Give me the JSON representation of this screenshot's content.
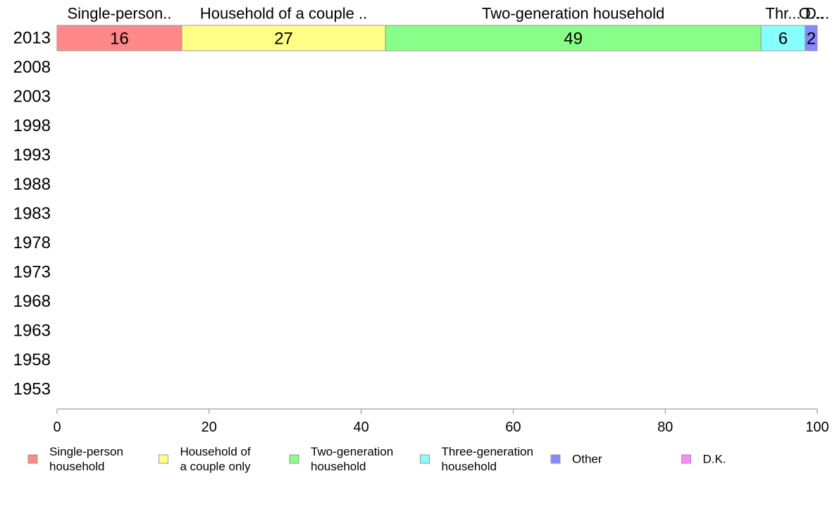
{
  "chart_data": {
    "type": "bar",
    "orientation": "horizontal",
    "stacked": true,
    "categories": [
      "2013",
      "2008",
      "2003",
      "1998",
      "1993",
      "1988",
      "1983",
      "1978",
      "1973",
      "1968",
      "1963",
      "1958",
      "1953"
    ],
    "series": [
      {
        "name": "Single-person household",
        "color": "#ff8888",
        "top_label": "Single-person..",
        "values": [
          16.4,
          null,
          null,
          null,
          null,
          null,
          null,
          null,
          null,
          null,
          null,
          null,
          null
        ]
      },
      {
        "name": "Household of a couple only",
        "color": "#ffff88",
        "top_label": "Household of a couple ..",
        "values": [
          26.8,
          null,
          null,
          null,
          null,
          null,
          null,
          null,
          null,
          null,
          null,
          null,
          null
        ]
      },
      {
        "name": "Two-generation household",
        "color": "#88ff88",
        "top_label": "Two-generation household",
        "values": [
          49.4,
          null,
          null,
          null,
          null,
          null,
          null,
          null,
          null,
          null,
          null,
          null,
          null
        ]
      },
      {
        "name": "Three-generation household",
        "color": "#88ffff",
        "top_label": "Thr...",
        "values": [
          5.8,
          null,
          null,
          null,
          null,
          null,
          null,
          null,
          null,
          null,
          null,
          null,
          null
        ]
      },
      {
        "name": "Other",
        "color": "#8888ff",
        "top_label": "O...",
        "values": [
          1.6,
          null,
          null,
          null,
          null,
          null,
          null,
          null,
          null,
          null,
          null,
          null,
          null
        ]
      },
      {
        "name": "D.K.",
        "color": "#ff88ff",
        "top_label": "D...",
        "values": [
          0.0,
          null,
          null,
          null,
          null,
          null,
          null,
          null,
          null,
          null,
          null,
          null,
          null
        ]
      }
    ],
    "data_labels": [
      [
        "16",
        "27",
        "49",
        "6",
        "2",
        ""
      ]
    ],
    "xlim": [
      0,
      100
    ],
    "xticks": [
      0,
      20,
      40,
      60,
      80,
      100
    ],
    "title": "",
    "xlabel": "",
    "ylabel": "",
    "grid": false,
    "legend": {
      "position": "bottom",
      "items": [
        {
          "lines": [
            "Single-person",
            "household"
          ],
          "color": "#ff8888"
        },
        {
          "lines": [
            "Household of",
            "a couple only"
          ],
          "color": "#ffff88"
        },
        {
          "lines": [
            "Two-generation",
            "household"
          ],
          "color": "#88ff88"
        },
        {
          "lines": [
            "Three-generation",
            "household"
          ],
          "color": "#88ffff"
        },
        {
          "lines": [
            "Other"
          ],
          "color": "#8888ff"
        },
        {
          "lines": [
            "D.K."
          ],
          "color": "#ff88ff"
        }
      ]
    }
  }
}
